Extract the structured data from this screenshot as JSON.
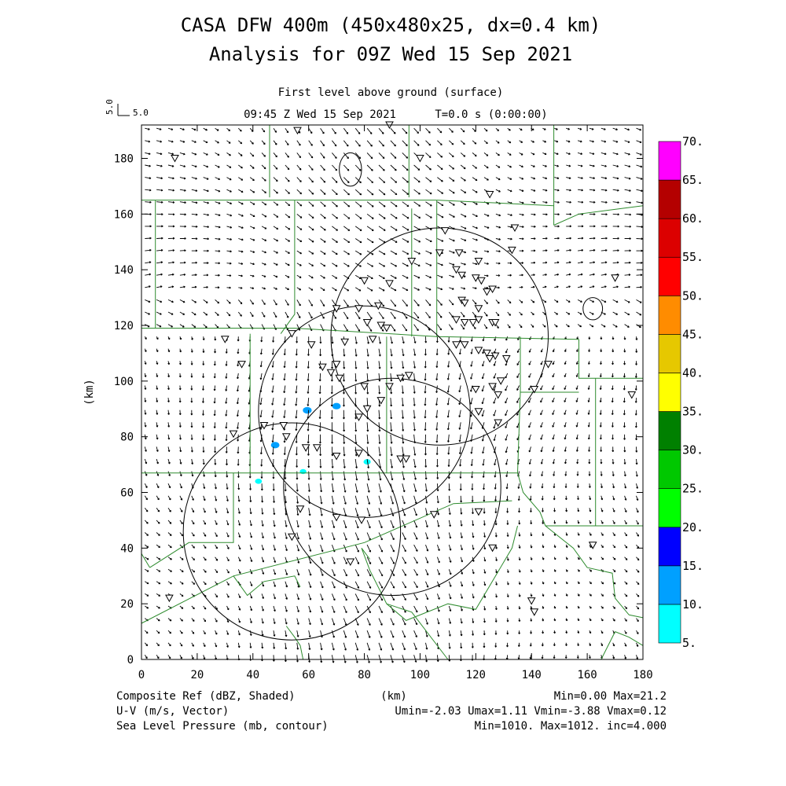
{
  "chart_data": {
    "type": "map",
    "title_line1": "CASA DFW 400m (450x480x25, dx=0.4 km)",
    "title_line2": "Analysis for 09Z Wed 15 Sep 2021",
    "subtitle": "First level above ground (surface)",
    "time_label": "09:45 Z Wed 15 Sep 2021",
    "sim_time": "T=0.0 s (0:00:00)",
    "vector_scale": {
      "unit_label": "5.0",
      "value_label": "5.0"
    },
    "xlabel": "(km)",
    "ylabel": "(km)",
    "xlim": [
      0,
      180
    ],
    "ylim": [
      0,
      192
    ],
    "xticks": [
      0,
      20,
      40,
      60,
      80,
      100,
      120,
      140,
      160,
      180
    ],
    "yticks": [
      0,
      20,
      40,
      60,
      80,
      100,
      120,
      140,
      160,
      180
    ],
    "colorbar": {
      "levels": [
        "5.",
        "10.",
        "15.",
        "20.",
        "25.",
        "30.",
        "35.",
        "40.",
        "45.",
        "50.",
        "55.",
        "60.",
        "65.",
        "70."
      ],
      "colors": [
        "#00ffff",
        "#00a0ff",
        "#0000ff",
        "#00ff00",
        "#00c800",
        "#008000",
        "#ffff00",
        "#e6c800",
        "#ff8c00",
        "#ff0000",
        "#dc0000",
        "#b40000",
        "#ff00ff"
      ]
    },
    "footer_left": [
      "Composite Ref (dBZ, Shaded)",
      "U-V (m/s, Vector)",
      "Sea Level Pressure (mb, contour)"
    ],
    "footer_center": "(km)",
    "footer_right": [
      "Min=0.00 Max=21.2",
      "Umin=-2.03 Umax=1.11 Vmin=-3.88 Vmax=0.12",
      "Min=1010. Max=1012. inc=4.000"
    ],
    "radar_rings": [
      {
        "cx": 107,
        "cy": 116,
        "r": 39
      },
      {
        "cx": 80,
        "cy": 89,
        "r": 38
      },
      {
        "cx": 90,
        "cy": 62,
        "r": 39
      },
      {
        "cx": 54,
        "cy": 46,
        "r": 39
      }
    ],
    "pressure_contours": [
      {
        "cx": 75,
        "cy": 176,
        "rx": 4,
        "ry": 6
      },
      {
        "cx": 162,
        "cy": 126,
        "rx": 3.5,
        "ry": 4
      }
    ],
    "reflectivity_echoes": [
      {
        "x": 59.5,
        "y": 89.5,
        "dbz": 13
      },
      {
        "x": 70,
        "y": 91,
        "dbz": 12
      },
      {
        "x": 48,
        "y": 77,
        "dbz": 12
      },
      {
        "x": 81,
        "y": 71,
        "dbz": 8
      },
      {
        "x": 42,
        "y": 64,
        "dbz": 7
      },
      {
        "x": 58,
        "y": 67.5,
        "dbz": 6
      }
    ],
    "stations": [
      [
        56,
        190
      ],
      [
        89,
        192
      ],
      [
        12,
        180
      ],
      [
        100,
        180
      ],
      [
        125,
        167
      ],
      [
        134,
        155
      ],
      [
        109,
        154
      ],
      [
        114,
        146
      ],
      [
        133,
        147
      ],
      [
        107,
        146
      ],
      [
        97,
        143
      ],
      [
        113,
        140
      ],
      [
        121,
        143
      ],
      [
        115,
        138
      ],
      [
        120,
        137
      ],
      [
        122,
        136
      ],
      [
        124,
        132
      ],
      [
        126,
        133
      ],
      [
        80,
        136
      ],
      [
        89,
        135
      ],
      [
        115,
        129
      ],
      [
        116,
        128
      ],
      [
        113,
        122
      ],
      [
        116,
        121
      ],
      [
        119,
        121
      ],
      [
        121,
        122
      ],
      [
        121,
        126
      ],
      [
        126,
        121
      ],
      [
        127,
        121
      ],
      [
        85,
        127
      ],
      [
        78,
        126
      ],
      [
        70,
        126
      ],
      [
        81,
        121
      ],
      [
        86,
        120
      ],
      [
        88,
        119
      ],
      [
        73,
        114
      ],
      [
        83,
        115
      ],
      [
        54,
        117
      ],
      [
        61,
        113
      ],
      [
        113,
        113
      ],
      [
        116,
        113
      ],
      [
        121,
        111
      ],
      [
        124,
        110
      ],
      [
        127,
        109
      ],
      [
        125,
        108
      ],
      [
        131,
        108
      ],
      [
        146,
        106
      ],
      [
        36,
        106
      ],
      [
        65,
        105
      ],
      [
        70,
        106
      ],
      [
        68,
        103
      ],
      [
        71,
        101
      ],
      [
        30,
        115
      ],
      [
        96,
        102
      ],
      [
        89,
        98
      ],
      [
        93,
        101
      ],
      [
        120,
        97
      ],
      [
        126,
        98
      ],
      [
        128,
        95
      ],
      [
        129,
        100
      ],
      [
        141,
        97
      ],
      [
        176,
        95
      ],
      [
        80,
        98
      ],
      [
        86,
        93
      ],
      [
        78,
        87
      ],
      [
        81,
        90
      ],
      [
        121,
        89
      ],
      [
        128,
        85
      ],
      [
        44,
        84
      ],
      [
        33,
        81
      ],
      [
        52,
        80
      ],
      [
        51,
        84
      ],
      [
        59,
        76
      ],
      [
        63,
        76
      ],
      [
        70,
        73
      ],
      [
        78,
        74
      ],
      [
        93,
        72
      ],
      [
        95,
        72
      ],
      [
        57,
        54
      ],
      [
        70,
        51
      ],
      [
        79,
        50
      ],
      [
        121,
        53
      ],
      [
        105,
        52
      ],
      [
        54,
        44
      ],
      [
        126,
        40
      ],
      [
        75,
        35
      ],
      [
        10,
        22
      ],
      [
        140,
        21
      ],
      [
        141,
        17
      ],
      [
        170,
        137
      ],
      [
        162,
        41
      ]
    ],
    "counties": [
      [
        [
          0,
          191
        ],
        [
          0,
          192
        ]
      ],
      [
        [
          46,
          192
        ],
        [
          46,
          166
        ]
      ],
      [
        [
          96,
          192
        ],
        [
          96,
          166
        ]
      ],
      [
        [
          148,
          192
        ],
        [
          148,
          156
        ]
      ],
      [
        [
          0,
          165
        ],
        [
          106,
          165
        ]
      ],
      [
        [
          106,
          165
        ],
        [
          148,
          163
        ]
      ],
      [
        [
          148,
          156
        ],
        [
          157,
          160
        ],
        [
          180,
          163
        ]
      ],
      [
        [
          106,
          165
        ],
        [
          106,
          116
        ]
      ],
      [
        [
          55,
          165
        ],
        [
          55,
          124
        ],
        [
          50,
          117
        ]
      ],
      [
        [
          5,
          165
        ],
        [
          5,
          119
        ]
      ],
      [
        [
          0,
          119
        ],
        [
          55,
          119
        ],
        [
          106,
          116
        ],
        [
          157,
          115
        ]
      ],
      [
        [
          157,
          115
        ],
        [
          157,
          101
        ],
        [
          180,
          101
        ]
      ],
      [
        [
          97,
          162
        ],
        [
          97,
          116
        ]
      ],
      [
        [
          39,
          117
        ],
        [
          39,
          67
        ]
      ],
      [
        [
          88,
          116
        ],
        [
          88,
          67
        ]
      ],
      [
        [
          136,
          116
        ],
        [
          136,
          96
        ],
        [
          135,
          67
        ]
      ],
      [
        [
          136,
          96
        ],
        [
          157,
          96
        ]
      ],
      [
        [
          0,
          67
        ],
        [
          135,
          67
        ]
      ],
      [
        [
          135,
          67
        ],
        [
          137,
          60
        ],
        [
          143,
          53
        ],
        [
          145,
          48
        ],
        [
          180,
          48
        ]
      ],
      [
        [
          145,
          48
        ],
        [
          155,
          40
        ],
        [
          160,
          33
        ],
        [
          169,
          31
        ],
        [
          170,
          22
        ],
        [
          175,
          16
        ],
        [
          180,
          15
        ]
      ],
      [
        [
          163,
          48
        ],
        [
          163,
          101
        ]
      ],
      [
        [
          33,
          67
        ],
        [
          33,
          42
        ],
        [
          17,
          42
        ],
        [
          3,
          33
        ]
      ],
      [
        [
          0,
          38
        ],
        [
          3,
          33
        ]
      ],
      [
        [
          0,
          13
        ],
        [
          33,
          30
        ],
        [
          80,
          42
        ],
        [
          112,
          56
        ],
        [
          133,
          57
        ]
      ],
      [
        [
          33,
          30
        ],
        [
          38,
          23
        ],
        [
          44,
          28
        ],
        [
          55,
          30
        ],
        [
          57,
          26
        ]
      ],
      [
        [
          52,
          12
        ],
        [
          55,
          8
        ],
        [
          57,
          5
        ],
        [
          58,
          0
        ]
      ],
      [
        [
          82,
          36
        ],
        [
          79,
          40
        ],
        [
          82,
          32
        ],
        [
          88,
          20
        ],
        [
          95,
          14
        ],
        [
          110,
          20
        ],
        [
          120,
          18
        ],
        [
          133,
          40
        ],
        [
          135,
          48
        ]
      ],
      [
        [
          88,
          20
        ],
        [
          97,
          17
        ],
        [
          110,
          0
        ]
      ],
      [
        [
          170,
          10
        ],
        [
          165,
          0
        ]
      ],
      [
        [
          170,
          10
        ],
        [
          175,
          8
        ],
        [
          180,
          5
        ]
      ]
    ],
    "wind_field": {
      "dx": 4.2,
      "dy": 4.4,
      "base_u": 0.5,
      "base_v": -2.3
    }
  }
}
